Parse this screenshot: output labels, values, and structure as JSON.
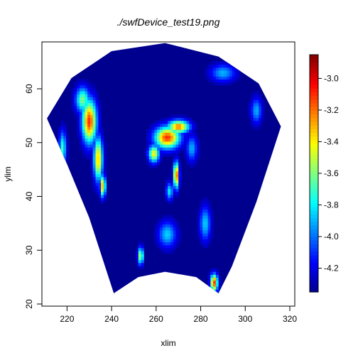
{
  "chart_data": {
    "type": "heatmap",
    "title": "./swfDevice_test19.png",
    "xlabel": "xlim",
    "ylabel": "ylim",
    "xlim": [
      210,
      320
    ],
    "ylim": [
      20,
      67
    ],
    "xticks": [
      220,
      240,
      260,
      280,
      300,
      320
    ],
    "yticks": [
      20,
      30,
      40,
      50,
      60
    ],
    "grid": false,
    "domain_shape": "fan sector",
    "sector_outline": {
      "top_arc": [
        [
          211,
          54.5
        ],
        [
          222,
          62
        ],
        [
          240,
          67
        ],
        [
          264,
          68.5
        ],
        [
          288,
          66
        ],
        [
          306,
          61
        ],
        [
          316,
          53
        ]
      ],
      "right_edge": [
        [
          316,
          53
        ],
        [
          305,
          39
        ],
        [
          294,
          27
        ],
        [
          288,
          22
        ]
      ],
      "bottom_arc": [
        [
          288,
          22
        ],
        [
          278,
          25
        ],
        [
          264,
          26
        ],
        [
          252,
          25
        ],
        [
          241,
          22
        ]
      ],
      "left_edge": [
        [
          241,
          22
        ],
        [
          230,
          36
        ],
        [
          220,
          46
        ],
        [
          211,
          54.5
        ]
      ]
    },
    "background_value": -4.35,
    "features": [
      {
        "cx": 230,
        "cy": 54,
        "rx": 4,
        "ry": 5,
        "value": -3.1
      },
      {
        "cx": 227,
        "cy": 58,
        "rx": 4,
        "ry": 3,
        "value": -3.6
      },
      {
        "cx": 234,
        "cy": 47,
        "rx": 2.5,
        "ry": 5,
        "value": -3.3
      },
      {
        "cx": 236,
        "cy": 42,
        "rx": 1.5,
        "ry": 2.5,
        "value": -3.3
      },
      {
        "cx": 218,
        "cy": 49,
        "rx": 2,
        "ry": 4,
        "value": -3.7
      },
      {
        "cx": 265,
        "cy": 51,
        "rx": 7,
        "ry": 2.5,
        "value": -3.1
      },
      {
        "cx": 270,
        "cy": 53,
        "rx": 6,
        "ry": 1.5,
        "value": -3.2
      },
      {
        "cx": 259,
        "cy": 48,
        "rx": 3,
        "ry": 2,
        "value": -3.4
      },
      {
        "cx": 269,
        "cy": 44,
        "rx": 1.5,
        "ry": 3,
        "value": -3.1
      },
      {
        "cx": 266,
        "cy": 41,
        "rx": 2,
        "ry": 2,
        "value": -3.8
      },
      {
        "cx": 276,
        "cy": 49,
        "rx": 3,
        "ry": 3,
        "value": -3.9
      },
      {
        "cx": 290,
        "cy": 63,
        "rx": 7,
        "ry": 2,
        "value": -3.9
      },
      {
        "cx": 305,
        "cy": 56,
        "rx": 3,
        "ry": 3,
        "value": -3.9
      },
      {
        "cx": 265,
        "cy": 33,
        "rx": 5,
        "ry": 3,
        "value": -3.85
      },
      {
        "cx": 282,
        "cy": 35,
        "rx": 3,
        "ry": 4,
        "value": -3.85
      },
      {
        "cx": 286,
        "cy": 24,
        "rx": 2,
        "ry": 2,
        "value": -3.1
      },
      {
        "cx": 253,
        "cy": 29,
        "rx": 1.5,
        "ry": 2,
        "value": -3.5
      }
    ],
    "colorbar": {
      "min": -4.35,
      "max": -2.85,
      "ticks": [
        -4.2,
        -4.0,
        -3.8,
        -3.6,
        -3.4,
        -3.2,
        -3.0
      ],
      "tick_labels": [
        "-4.2",
        "-4.0",
        "-3.8",
        "-3.6",
        "-3.4",
        "-3.2",
        "-3.0"
      ],
      "palette": [
        "#00008F",
        "#0000FF",
        "#0080FF",
        "#00FFFF",
        "#80FF80",
        "#FFFF00",
        "#FF8000",
        "#FF0000",
        "#800000"
      ]
    }
  }
}
